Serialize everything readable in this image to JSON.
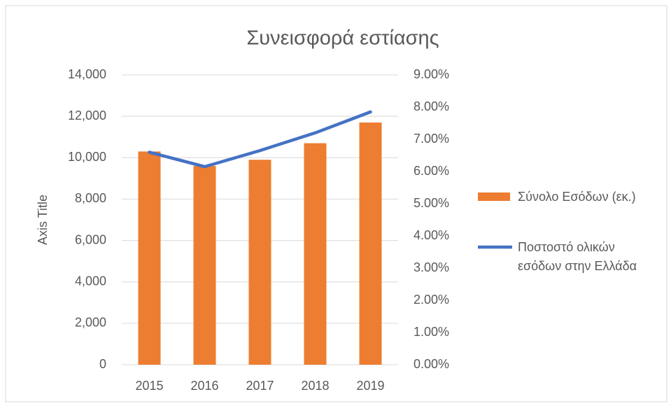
{
  "chart_data": {
    "type": "bar",
    "title": "Συνεισφορά εστίασης",
    "y_label": "Axis Title",
    "categories": [
      "2015",
      "2016",
      "2017",
      "2018",
      "2019"
    ],
    "series": [
      {
        "name": "Σύνολο Εσόδων (εκ.)",
        "type": "bar",
        "color": "#ed7d31",
        "values": [
          10300,
          9600,
          9900,
          10700,
          11700
        ]
      },
      {
        "name": "Ποστοστό ολικών εσόδων στην Ελλάδα",
        "type": "line",
        "axis": "y2",
        "color": "#4472c4",
        "values": [
          6.6,
          6.15,
          6.65,
          7.2,
          7.85
        ]
      }
    ],
    "ylim": [
      0,
      14000
    ],
    "yticks": [
      0,
      {
        "value": 2000,
        "label": "2,000"
      },
      {
        "value": 4000,
        "label": "4,000"
      },
      {
        "value": 6000,
        "label": "6,000"
      },
      {
        "value": 8000,
        "label": "8,000"
      },
      {
        "value": 10000,
        "label": "10,000"
      },
      {
        "value": 12000,
        "label": "12,000"
      },
      {
        "value": 14000,
        "label": "14,000"
      }
    ],
    "y2lim": [
      0,
      9
    ],
    "y2ticks": [
      {
        "value": 0,
        "label": "0.00%"
      },
      {
        "value": 1,
        "label": "1.00%"
      },
      {
        "value": 2,
        "label": "2.00%"
      },
      {
        "value": 3,
        "label": "3.00%"
      },
      {
        "value": 4,
        "label": "4.00%"
      },
      {
        "value": 5,
        "label": "5.00%"
      },
      {
        "value": 6,
        "label": "6.00%"
      },
      {
        "value": 7,
        "label": "7.00%"
      },
      {
        "value": 8,
        "label": "8.00%"
      },
      {
        "value": 9,
        "label": "9.00%"
      }
    ],
    "grid": true,
    "legend": "right"
  }
}
